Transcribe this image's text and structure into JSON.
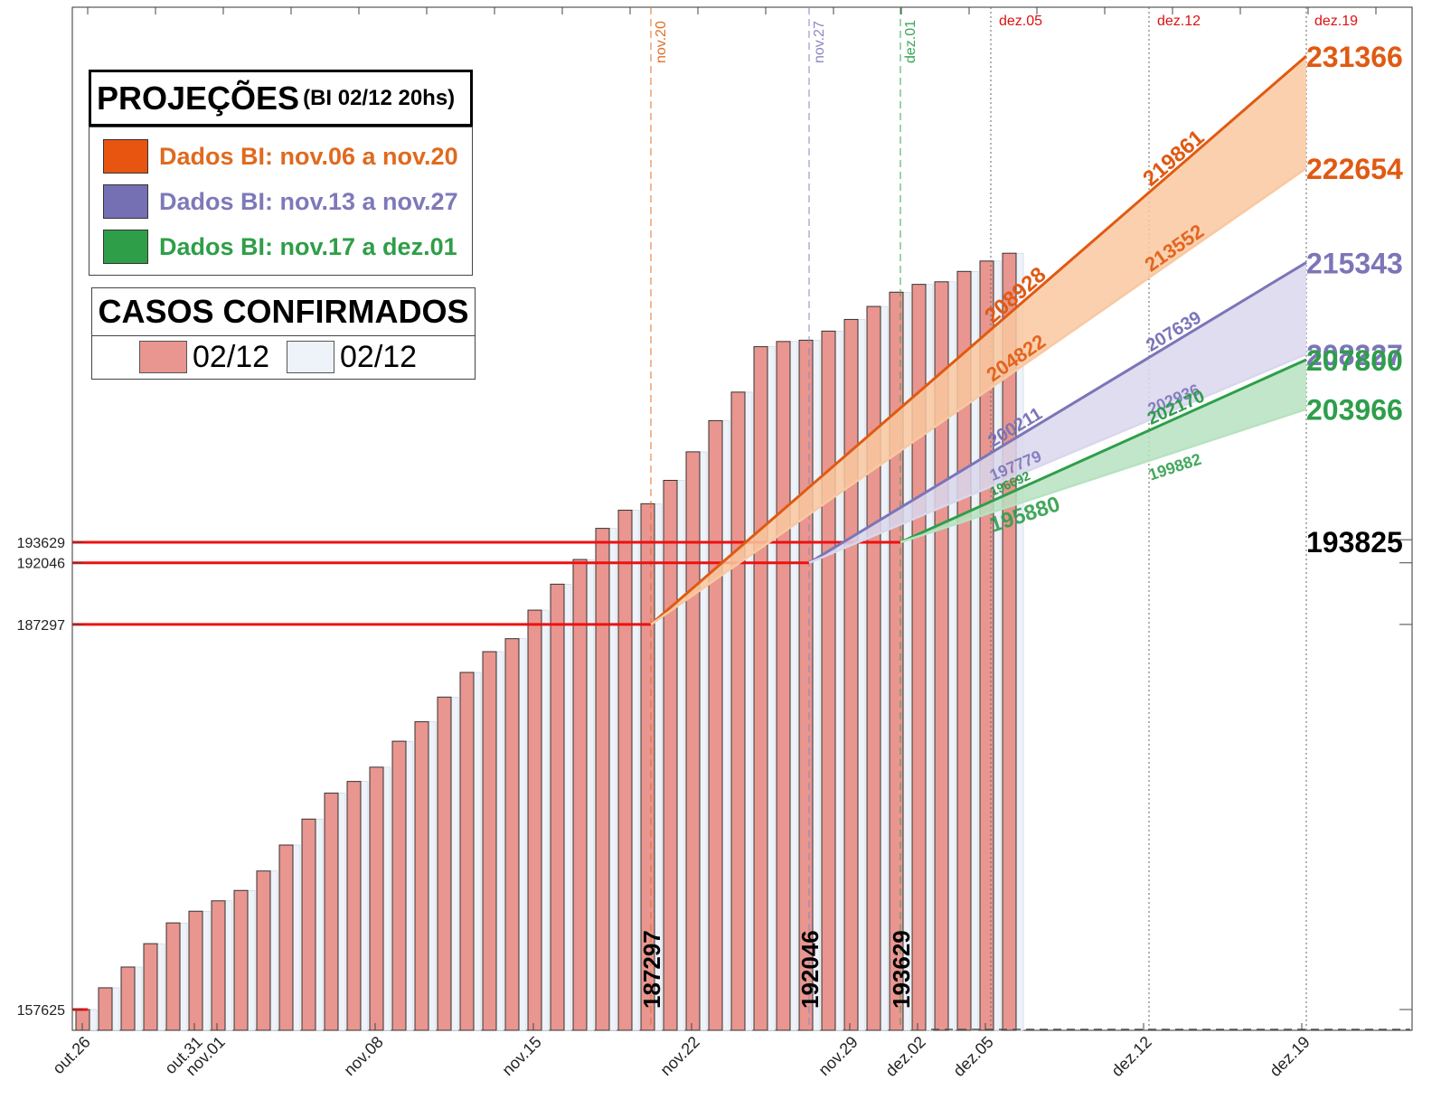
{
  "chart_data": {
    "type": "bar",
    "x_ticks": [
      "out.26",
      "out.31",
      "nov.01",
      "nov.08",
      "nov.15",
      "nov.22",
      "nov.29",
      "dez.02",
      "dez.05",
      "dez.12",
      "dez.19"
    ],
    "y_ticks": [
      "157625",
      "187297",
      "192046",
      "193629"
    ],
    "bars_confirmed": [
      157625,
      159300,
      160900,
      162700,
      164300,
      165200,
      166000,
      166800,
      168300,
      170300,
      172300,
      174300,
      175200,
      176300,
      178300,
      179800,
      181700,
      183600,
      185200,
      186200,
      188400,
      190400,
      192300,
      194700,
      196100,
      196600,
      198400,
      200600,
      203000,
      205200,
      208700,
      209100,
      209200,
      209900,
      210800,
      211800,
      212900,
      213500,
      213700,
      214500,
      215300,
      215900
    ],
    "bars_confirmed_note_values": {
      "nov.20": "187297",
      "nov.27": "192046",
      "dez.01": "193629"
    },
    "bar_labels": [
      "187297",
      "192046",
      "193629"
    ],
    "reference_levels": [
      "193629",
      "192046",
      "187297",
      "157625"
    ],
    "vlines_dashed": [
      {
        "label": "nov.20",
        "color": "#e0702a"
      },
      {
        "label": "nov.27",
        "color": "#8a86c0"
      },
      {
        "label": "dez.01",
        "color": "#3aa656"
      }
    ],
    "vlines_dotted": [
      {
        "label": "dez.05",
        "color": "#dd1111"
      },
      {
        "label": "dez.12",
        "color": "#dd1111"
      },
      {
        "label": "dez.19",
        "color": "#dd1111"
      }
    ],
    "projections": [
      {
        "name": "Dados BI: nov.06 a nov.20",
        "color": "#e05a12",
        "fill": "#f9c8a0",
        "upper": [
          "208928",
          "219861",
          "231366"
        ],
        "lower": [
          "204822",
          "213552",
          "222654"
        ]
      },
      {
        "name": "Dados BI: nov.13 a nov.27",
        "color": "#7b75b8",
        "fill": "#d9d7ec",
        "upper": [
          "200211",
          "207639",
          "215343"
        ],
        "lower": [
          "197779",
          "202936",
          "208227"
        ]
      },
      {
        "name": "Dados BI: nov.17 a dez.01",
        "color": "#2e9e4a",
        "fill": "#b7e2c0",
        "upper": [
          "196692",
          "202170",
          "207800"
        ],
        "lower": [
          "195880",
          "199882",
          "203966"
        ]
      }
    ],
    "final_value": "193825"
  },
  "legend": {
    "title": "PROJEÇÕES",
    "subtitle": "(BI 02/12 20hs)",
    "items": [
      {
        "label": "Dados BI: nov.06 a nov.20",
        "color": "#e85511",
        "text_color": "#e06a1e"
      },
      {
        "label": "Dados BI: nov.13 a nov.27",
        "color": "#7570b3",
        "text_color": "#7e79b9"
      },
      {
        "label": "Dados BI: nov.17 a dez.01",
        "color": "#2f9e48",
        "text_color": "#2f9e48"
      }
    ]
  },
  "cases_legend": {
    "title": "CASOS CONFIRMADOS",
    "items": [
      {
        "label": "02/12",
        "color": "#e8968f"
      },
      {
        "label": "02/12",
        "color": "#eef2f9"
      }
    ]
  }
}
